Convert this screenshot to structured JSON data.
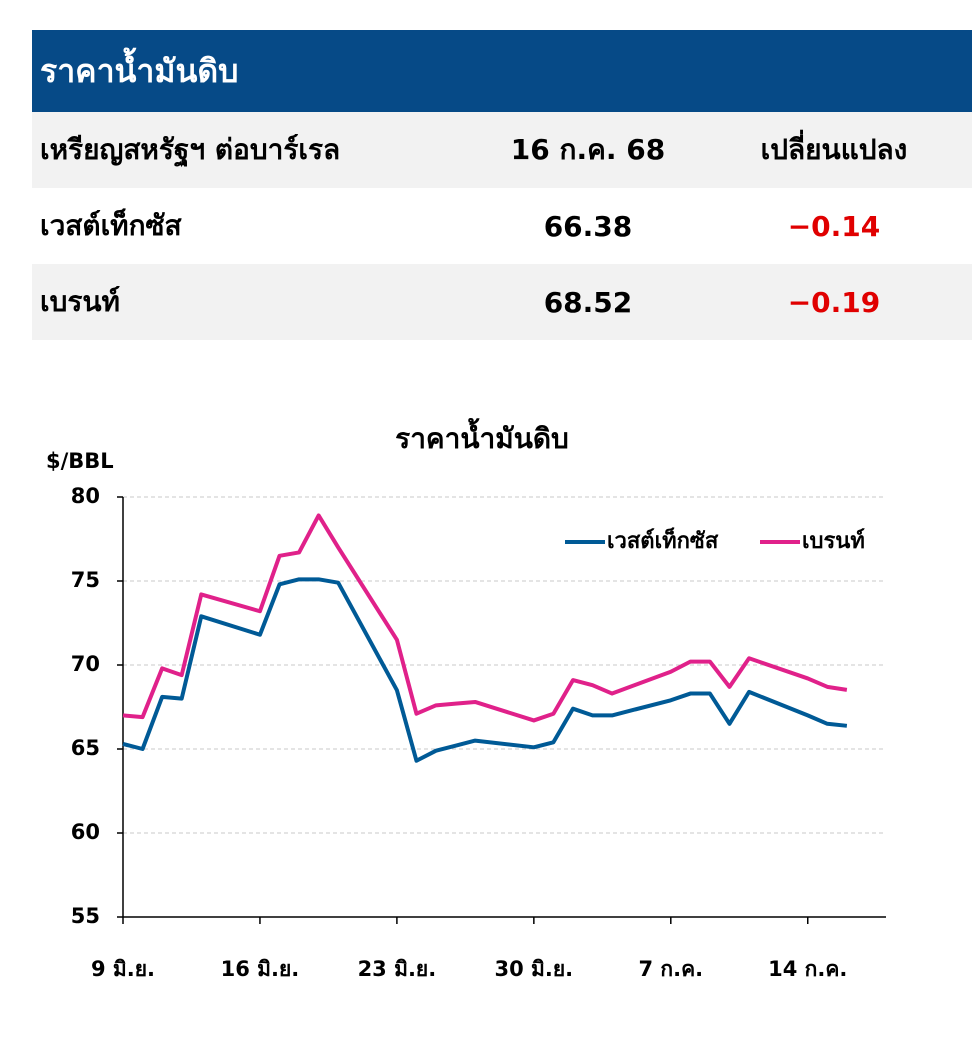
{
  "header": {
    "title": "ราคาน้ำมันดิบ"
  },
  "table": {
    "header": [
      "เหรียญสหรัฐฯ ต่อบาร์เรล",
      "16 ก.ค. 68",
      "เปลี่ยนแปลง"
    ],
    "rows": [
      [
        "เวสต์เท็กซัส",
        "66.38",
        "−0.14"
      ],
      [
        "เบรนท์",
        "68.52",
        "−0.19"
      ]
    ]
  },
  "chart_data": {
    "type": "line",
    "title": "ราคาน้ำมันดิบ",
    "y_label": "$/BBL",
    "x": [
      0,
      1,
      2,
      3,
      4,
      7,
      8,
      9,
      10,
      11,
      14,
      15,
      16,
      17,
      18,
      21,
      22,
      23,
      24,
      25,
      28,
      29,
      30,
      31,
      32,
      35,
      36,
      37
    ],
    "xlim": [
      0,
      39
    ],
    "xticks": [
      {
        "value": 0,
        "label": "9 มิ.ย."
      },
      {
        "value": 7,
        "label": "16 มิ.ย."
      },
      {
        "value": 14,
        "label": "23 มิ.ย."
      },
      {
        "value": 21,
        "label": "30 มิ.ย."
      },
      {
        "value": 28,
        "label": "7 ก.ค."
      },
      {
        "value": 35,
        "label": "14 ก.ค."
      }
    ],
    "ylim": [
      55,
      80
    ],
    "yticks": [
      55,
      60,
      65,
      70,
      75,
      80
    ],
    "grid": true,
    "legend": "upper right",
    "series": [
      {
        "name": "เวสต์เท็กซัส",
        "color": "#005a96",
        "values": [
          65.3,
          65.0,
          68.1,
          68.0,
          72.9,
          71.8,
          74.8,
          75.1,
          75.1,
          74.9,
          68.5,
          64.3,
          64.9,
          65.2,
          65.5,
          65.1,
          65.4,
          67.4,
          67.0,
          67.0,
          67.9,
          68.3,
          68.3,
          66.5,
          68.4,
          67.0,
          66.5,
          66.38
        ]
      },
      {
        "name": "เบรนท์",
        "color": "#e0218a",
        "values": [
          67.0,
          66.9,
          69.8,
          69.4,
          74.2,
          73.2,
          76.5,
          76.7,
          78.9,
          77.0,
          71.5,
          67.1,
          67.6,
          67.7,
          67.8,
          66.7,
          67.1,
          69.1,
          68.8,
          68.3,
          69.6,
          70.2,
          70.2,
          68.7,
          70.4,
          69.2,
          68.7,
          68.52
        ]
      }
    ]
  }
}
